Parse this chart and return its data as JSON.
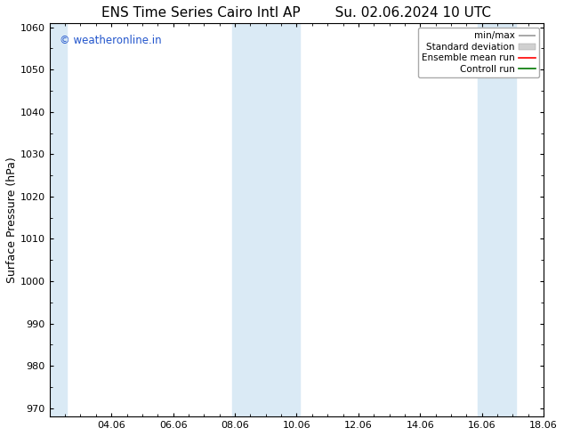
{
  "title_left": "ENS Time Series Cairo Intl AP",
  "title_right": "Su. 02.06.2024 10 UTC",
  "ylabel": "Surface Pressure (hPa)",
  "ylim": [
    968,
    1061
  ],
  "yticks": [
    970,
    980,
    990,
    1000,
    1010,
    1020,
    1030,
    1040,
    1050,
    1060
  ],
  "x_start_days": 0,
  "x_end_days": 16,
  "xtick_day_offsets": [
    2,
    4,
    6,
    8,
    10,
    12,
    14,
    16
  ],
  "xtick_labels": [
    "04.06",
    "06.06",
    "08.06",
    "10.06",
    "12.06",
    "14.06",
    "16.06",
    "18.06"
  ],
  "shaded_bands": [
    {
      "xmin": -0.1,
      "xmax": 0.55
    },
    {
      "xmin": 5.9,
      "xmax": 8.1
    },
    {
      "xmin": 13.85,
      "xmax": 15.1
    }
  ],
  "shaded_color": "#daeaf5",
  "watermark_text": "© weatheronline.in",
  "watermark_color": "#2255cc",
  "background_color": "#ffffff",
  "plot_bg_color": "#ffffff",
  "legend_items": [
    {
      "label": "min/max",
      "color": "#999999",
      "style": "minmax"
    },
    {
      "label": "Standard deviation",
      "color": "#cccccc",
      "style": "fill"
    },
    {
      "label": "Ensemble mean run",
      "color": "#ff0000",
      "style": "line"
    },
    {
      "label": "Controll run",
      "color": "#007700",
      "style": "line"
    }
  ],
  "title_fontsize": 11,
  "tick_fontsize": 8,
  "legend_fontsize": 7.5,
  "ylabel_fontsize": 9
}
